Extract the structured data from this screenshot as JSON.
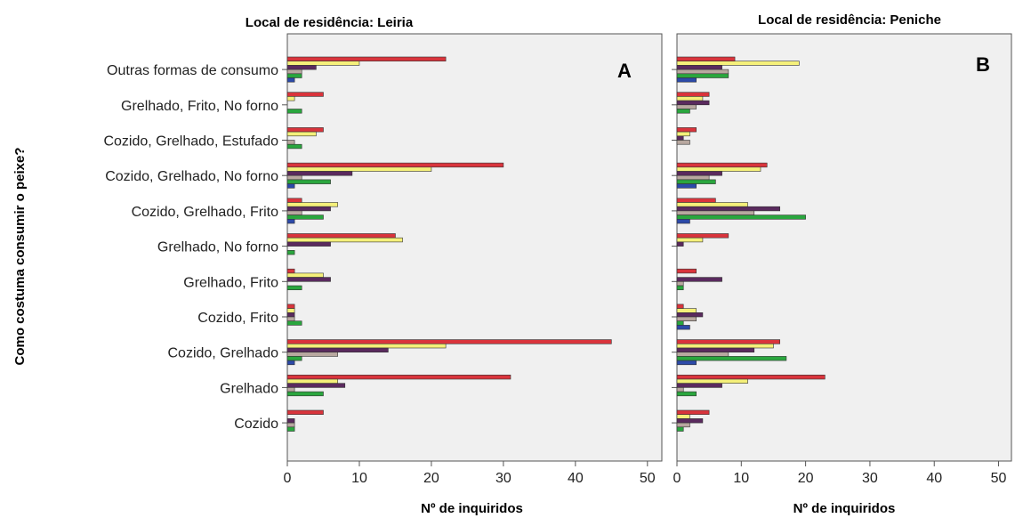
{
  "y_axis_label": "Como costuma consumir o peixe?",
  "colors": [
    "#d9343c",
    "#f5f07a",
    "#5a2a5e",
    "#b8a8a0",
    "#2aa63e",
    "#2c4aa8"
  ],
  "chart_data": [
    {
      "type": "bar",
      "orientation": "horizontal",
      "title": "Local de residência: Leiria",
      "panel_label": "A",
      "xlabel": "Nº de inquiridos",
      "xlim": [
        0,
        52
      ],
      "xticks": [
        "0",
        "10",
        "20",
        "30",
        "40",
        "50"
      ],
      "grid": false,
      "categories": [
        "Outras formas de consumo",
        "Grelhado, Frito, No forno",
        "Cozido, Grelhado, Estufado",
        "Cozido, Grelhado, No forno",
        "Cozido, Grelhado, Frito",
        "Grelhado, No forno",
        "Grelhado, Frito",
        "Cozido, Frito",
        "Cozido, Grelhado",
        "Grelhado",
        "Cozido"
      ],
      "series": [
        {
          "values": [
            22,
            5,
            5,
            30,
            2,
            15,
            1,
            1,
            45,
            31,
            5
          ]
        },
        {
          "values": [
            10,
            1,
            4,
            20,
            7,
            16,
            5,
            1,
            22,
            7,
            0
          ]
        },
        {
          "values": [
            4,
            0,
            0,
            9,
            6,
            6,
            6,
            1,
            14,
            8,
            1
          ]
        },
        {
          "values": [
            2,
            0,
            1,
            2,
            2,
            0,
            0,
            1,
            7,
            1,
            1
          ]
        },
        {
          "values": [
            2,
            2,
            2,
            6,
            5,
            1,
            2,
            2,
            2,
            5,
            1
          ]
        },
        {
          "values": [
            1,
            0,
            0,
            1,
            1,
            0,
            0,
            0,
            1,
            0,
            0
          ]
        }
      ]
    },
    {
      "type": "bar",
      "orientation": "horizontal",
      "title": "Local de residência: Peniche",
      "panel_label": "B",
      "xlabel": "Nº de inquiridos",
      "xlim": [
        0,
        52
      ],
      "xticks": [
        "0",
        "10",
        "20",
        "30",
        "40",
        "50"
      ],
      "grid": false,
      "categories": [
        "Outras formas de consumo",
        "Grelhado, Frito, No forno",
        "Cozido, Grelhado, Estufado",
        "Cozido, Grelhado, No forno",
        "Cozido, Grelhado, Frito",
        "Grelhado, No forno",
        "Grelhado, Frito",
        "Cozido, Frito",
        "Cozido, Grelhado",
        "Grelhado",
        "Cozido"
      ],
      "series": [
        {
          "values": [
            9,
            5,
            3,
            14,
            6,
            8,
            3,
            1,
            16,
            23,
            5
          ]
        },
        {
          "values": [
            19,
            4,
            2,
            13,
            11,
            4,
            0,
            3,
            15,
            11,
            2
          ]
        },
        {
          "values": [
            7,
            5,
            1,
            7,
            16,
            1,
            7,
            4,
            12,
            7,
            4
          ]
        },
        {
          "values": [
            8,
            3,
            2,
            5,
            12,
            0,
            1,
            3,
            8,
            1,
            2
          ]
        },
        {
          "values": [
            8,
            2,
            0,
            6,
            20,
            0,
            1,
            1,
            17,
            3,
            1
          ]
        },
        {
          "values": [
            3,
            0,
            0,
            3,
            2,
            0,
            0,
            2,
            3,
            0,
            0
          ]
        }
      ]
    }
  ]
}
